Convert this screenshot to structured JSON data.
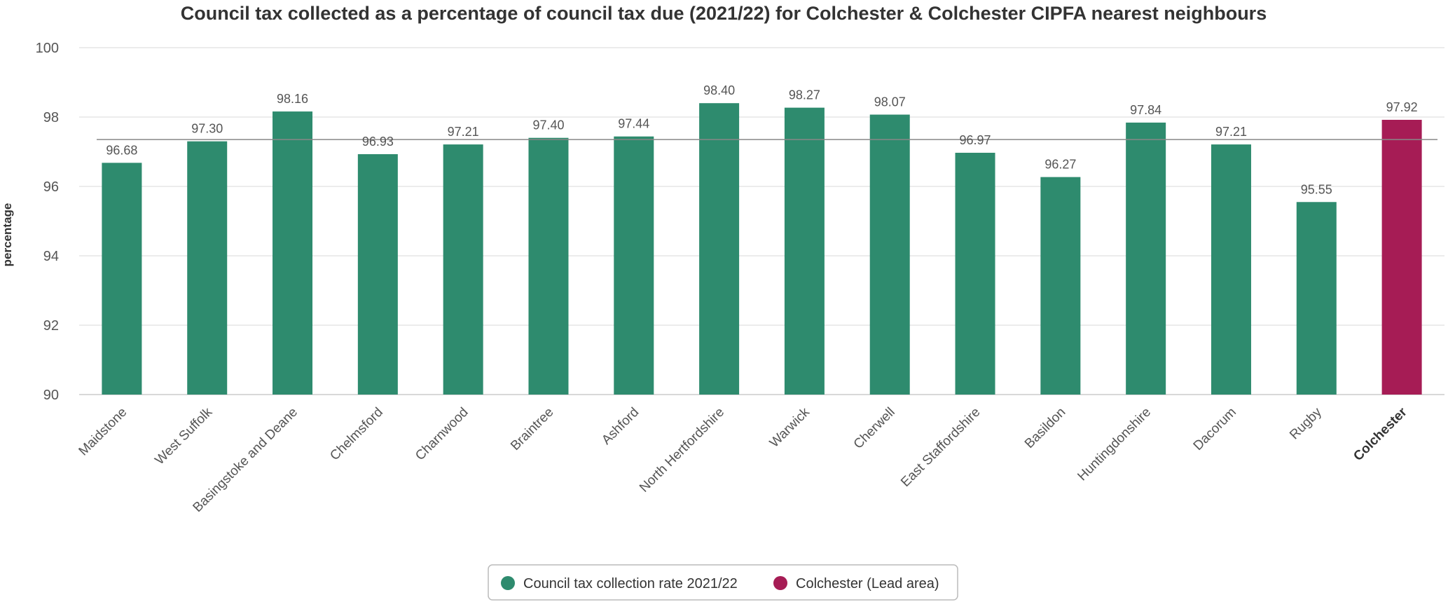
{
  "chart_data": {
    "type": "bar",
    "title": "Council tax collected as a percentage of council tax due (2021/22) for Colchester & Colchester CIPFA nearest neighbours",
    "xlabel": "",
    "ylabel": "percentage",
    "ylim": [
      90,
      100
    ],
    "yticks": [
      "90",
      "92",
      "94",
      "96",
      "98",
      "100"
    ],
    "grid": true,
    "categories": [
      "Maidstone",
      "West Suffolk",
      "Basingstoke and Deane",
      "Chelmsford",
      "Charnwood",
      "Braintree",
      "Ashford",
      "North Hertfordshire",
      "Warwick",
      "Cherwell",
      "East Staffordshire",
      "Basildon",
      "Huntingdonshire",
      "Dacorum",
      "Rugby",
      "Colchester"
    ],
    "values": [
      96.68,
      97.3,
      98.16,
      96.93,
      97.21,
      97.4,
      97.44,
      98.4,
      98.27,
      98.07,
      96.97,
      96.27,
      97.84,
      97.21,
      95.55,
      97.92
    ],
    "value_labels": [
      "96.68",
      "97.30",
      "98.16",
      "96.93",
      "97.21",
      "97.40",
      "97.44",
      "98.40",
      "98.27",
      "98.07",
      "96.97",
      "96.27",
      "97.84",
      "97.21",
      "95.55",
      "97.92"
    ],
    "lead_category": "Colchester",
    "reference_line": 97.35,
    "colors": {
      "series": "#2e8b6e",
      "lead": "#a61c55",
      "grid": "#e6e6e6",
      "reference": "#888888"
    },
    "legend": {
      "placement": "bottom-center",
      "entries": [
        {
          "name": "Council tax collection rate 2021/22",
          "color": "#2e8b6e"
        },
        {
          "name": "Colchester (Lead area)",
          "color": "#a61c55"
        }
      ]
    }
  }
}
